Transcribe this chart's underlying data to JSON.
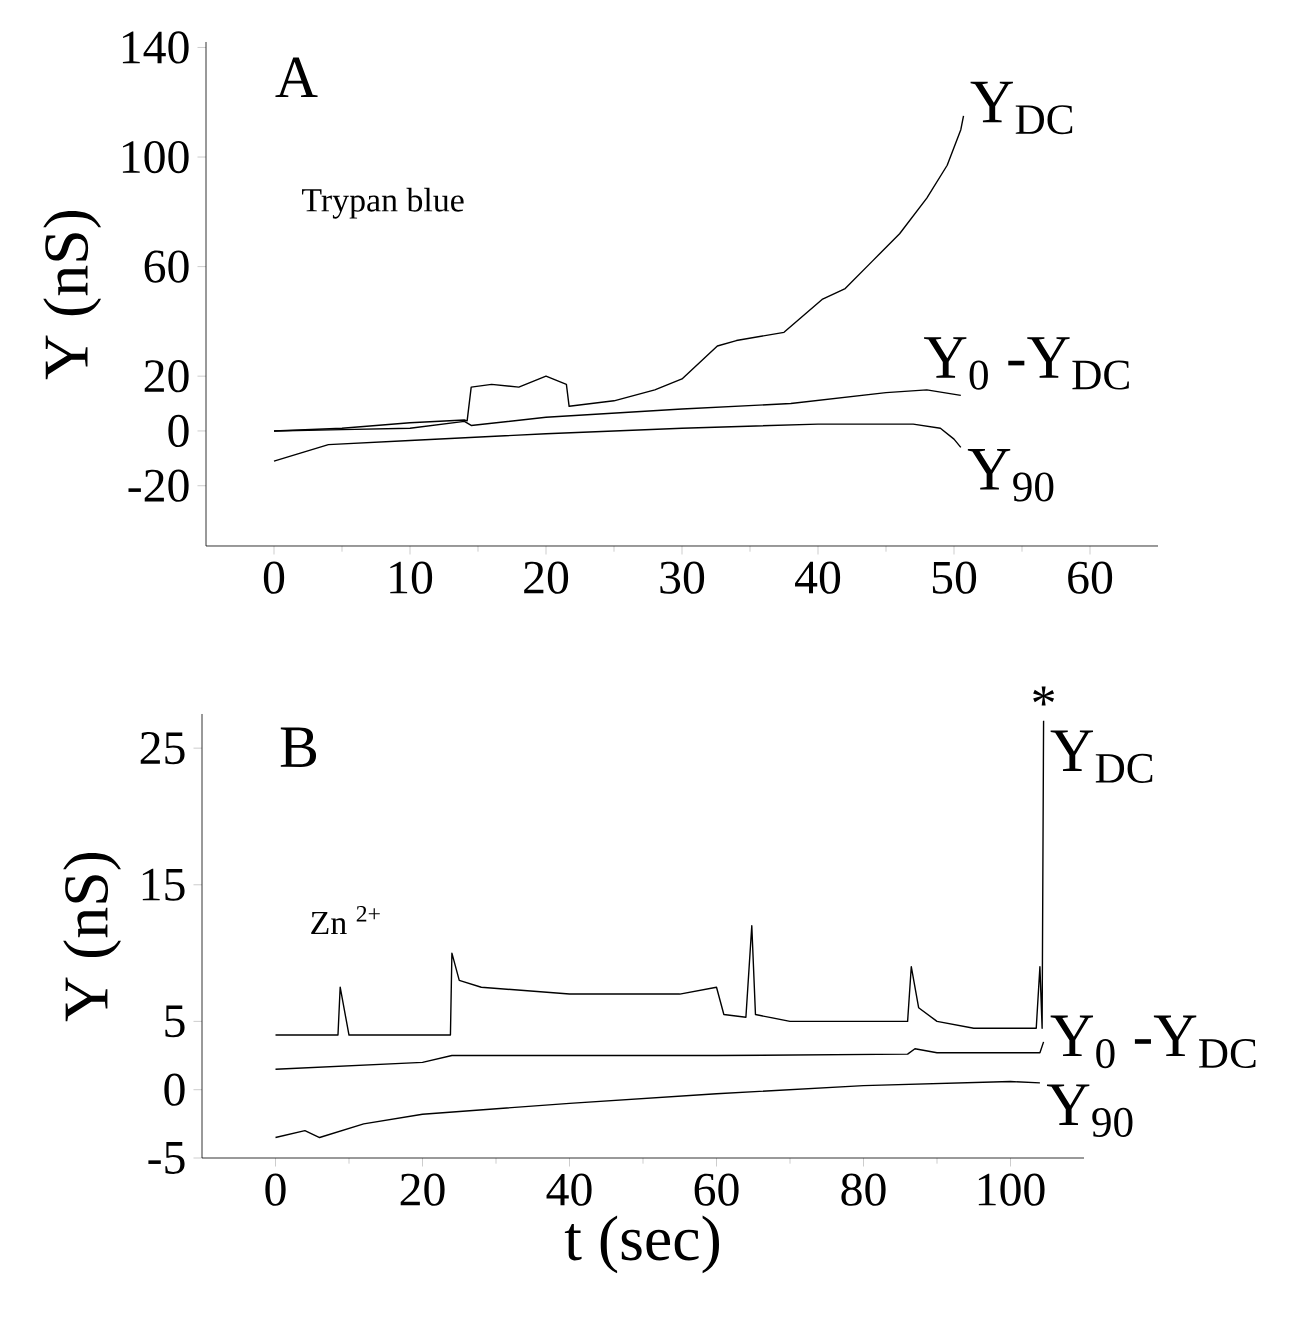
{
  "chart_data": [
    {
      "type": "line",
      "ylabel": "Y (nS)",
      "annotations": [
        "A",
        "Trypan blue"
      ],
      "xlim": [
        -5,
        65
      ],
      "xticks": [
        0,
        10,
        20,
        30,
        40,
        50,
        60
      ],
      "ylim": [
        -42,
        142
      ],
      "yticks": [
        -20,
        0,
        20,
        60,
        100,
        140
      ],
      "series": [
        {
          "name": "Y$_{DC}$",
          "color": "#000000",
          "x": [
            0,
            5,
            10,
            14,
            14.2,
            14.5,
            16,
            18,
            20,
            21.5,
            21.7,
            25,
            28,
            30,
            32.6,
            34,
            37.5,
            40.3,
            42,
            44,
            46,
            48,
            49.5,
            50.5,
            50.7
          ],
          "values": [
            0,
            1,
            3,
            4,
            3.7,
            16,
            17,
            16,
            20,
            17,
            9,
            11,
            15,
            19,
            31,
            33,
            36,
            48,
            52,
            62,
            72,
            85,
            97,
            110,
            115
          ]
        },
        {
          "name": "Y$_{0}$ -Y$_{DC}$",
          "color": "#000000",
          "x": [
            0,
            5,
            10,
            14,
            14.5,
            20,
            30,
            38,
            45,
            48,
            50.5
          ],
          "values": [
            0,
            0.5,
            1,
            3.5,
            2,
            5,
            8,
            10,
            14,
            15,
            13
          ]
        },
        {
          "name": "Y$_{90}$",
          "color": "#000000",
          "x": [
            0,
            2,
            4,
            10,
            20,
            30,
            40,
            47,
            49,
            50,
            50.5
          ],
          "values": [
            -11,
            -8,
            -5,
            -3.5,
            -1,
            1,
            2.5,
            2.5,
            1,
            -3,
            -6
          ]
        }
      ]
    },
    {
      "type": "line",
      "xlabel": "t (sec)",
      "ylabel": "Y (nS)",
      "annotations": [
        "B",
        "Zn $^{2+}$",
        {
          "text": "*",
          "x": 104.5,
          "y": 27
        }
      ],
      "xlim": [
        -10,
        110
      ],
      "xticks": [
        0,
        20,
        40,
        60,
        80,
        100
      ],
      "ylim": [
        -5,
        27.5
      ],
      "yticks": [
        -5,
        0,
        5,
        15,
        25
      ],
      "series": [
        {
          "name": "Y$_{DC}$",
          "color": "#000000",
          "x": [
            0,
            8.5,
            8.8,
            10,
            23.8,
            24,
            25,
            28,
            40,
            55,
            60,
            61,
            64,
            64.8,
            65.3,
            70,
            86,
            86.5,
            87.5,
            90,
            95,
            103.5,
            104,
            104.3,
            104.5
          ],
          "values": [
            4,
            4,
            7.5,
            4,
            4,
            10,
            8,
            7.5,
            7,
            7,
            7.5,
            5.5,
            5.3,
            12,
            5.5,
            5,
            5,
            9,
            6,
            5,
            4.5,
            4.5,
            9,
            4.5,
            27
          ]
        },
        {
          "name": "Y$_{0}$ -Y$_{DC}$",
          "color": "#000000",
          "x": [
            0,
            20,
            24,
            60,
            86,
            87,
            90,
            104,
            104.5
          ],
          "values": [
            1.5,
            2,
            2.5,
            2.5,
            2.6,
            3,
            2.7,
            2.7,
            3.5
          ]
        },
        {
          "name": "Y$_{90}$",
          "color": "#000000",
          "x": [
            0,
            4,
            6,
            12,
            20,
            40,
            60,
            80,
            100,
            104
          ],
          "values": [
            -3.5,
            -3,
            -3.5,
            -2.5,
            -1.8,
            -1,
            -0.3,
            0.3,
            0.6,
            0.5
          ]
        }
      ]
    }
  ]
}
